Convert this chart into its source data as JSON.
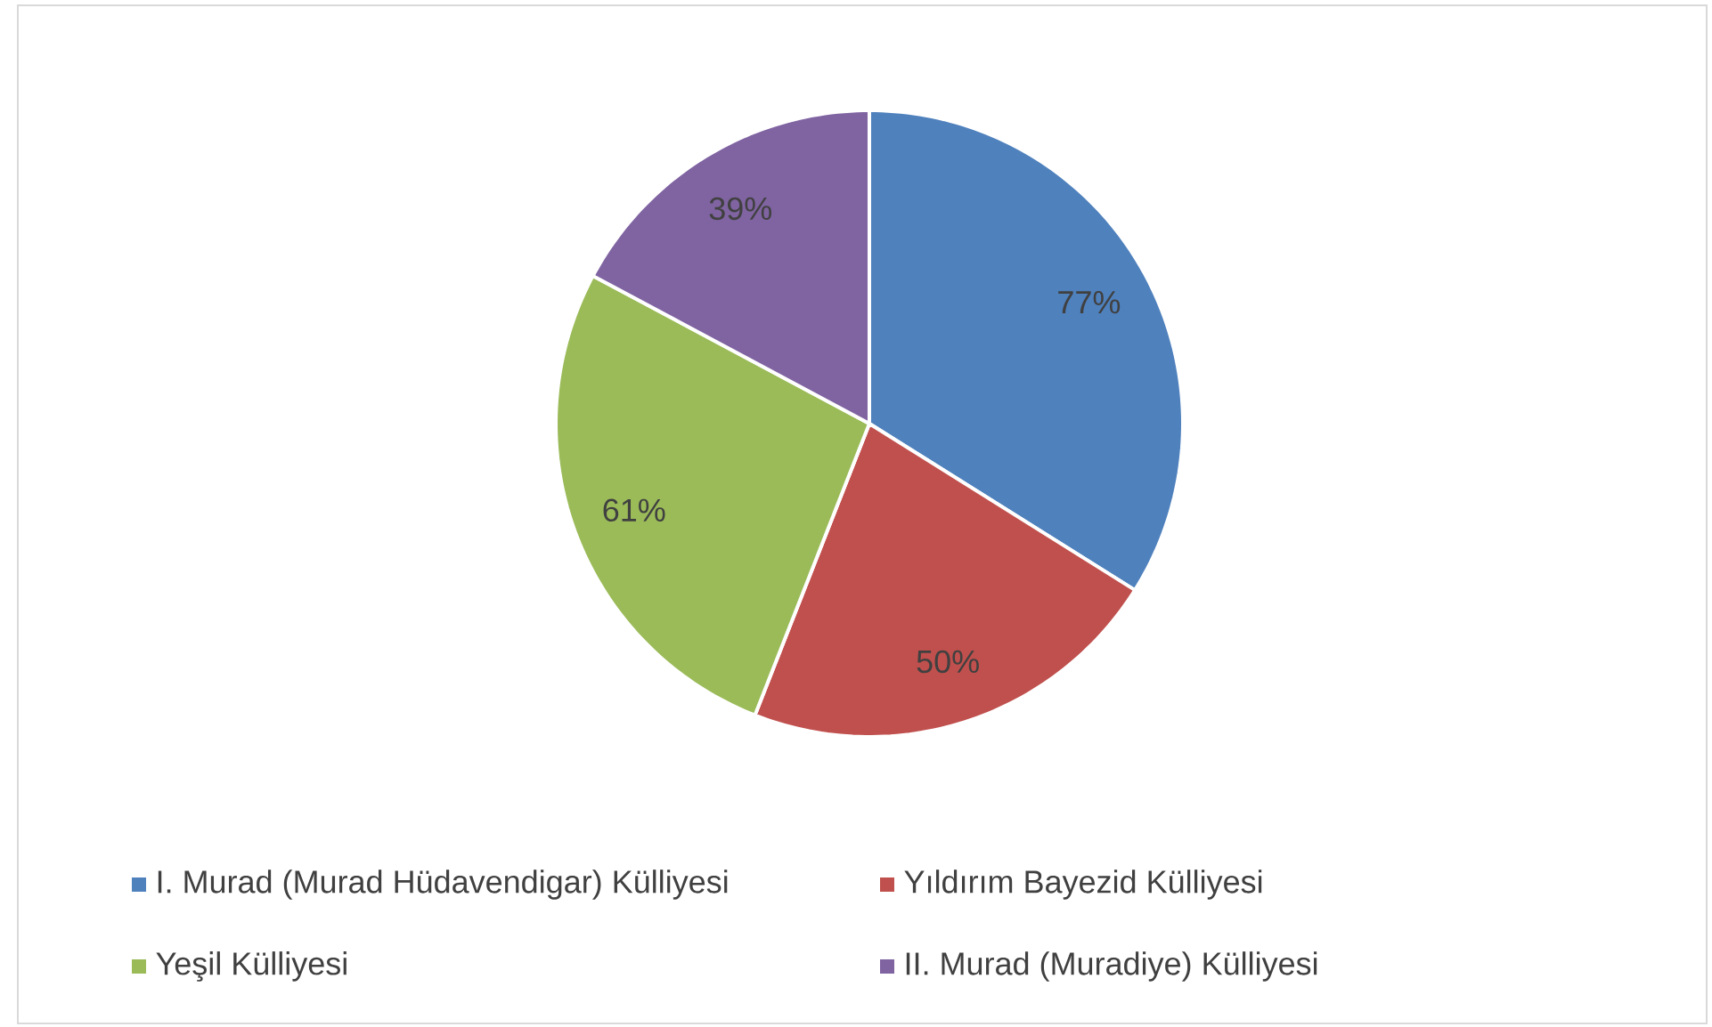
{
  "chart_data": {
    "type": "pie",
    "categories": [
      "I. Murad (Murad Hüdavendigar) Külliyesi",
      "Yıldırım Bayezid Külliyesi",
      "Yeşil Külliyesi",
      "II. Murad (Muradiye) Külliyesi"
    ],
    "values": [
      77,
      50,
      61,
      39
    ],
    "colors": [
      "#4f81bd",
      "#c0504d",
      "#9bbb59",
      "#8064a2"
    ],
    "value_labels": [
      "77%",
      "50%",
      "61%",
      "39%"
    ],
    "legend": "bottom"
  }
}
